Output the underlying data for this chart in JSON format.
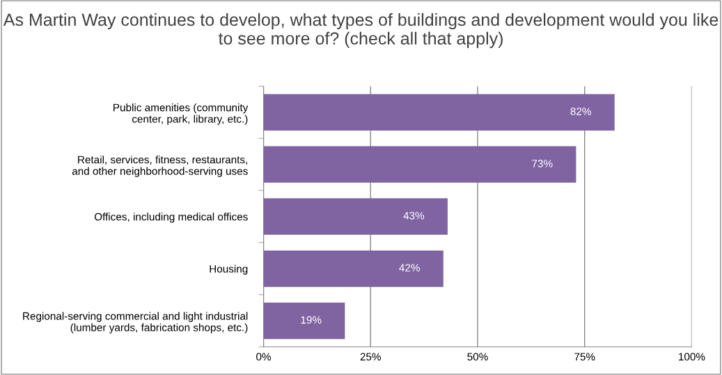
{
  "chart_data": {
    "type": "bar",
    "orientation": "horizontal",
    "title": "As Martin Way continues to develop, what types of buildings and development would you like to see more of? (check all that apply)",
    "categories": [
      "Public amenities (community\ncenter, park, library, etc.)",
      "Retail, services, fitness, restaurants,\nand other neighborhood-serving uses",
      "Offices, including medical offices",
      "Housing",
      "Regional-serving commercial and light industrial\n(lumber yards, fabrication shops, etc.)"
    ],
    "values": [
      82,
      73,
      43,
      42,
      19
    ],
    "value_labels": [
      "82%",
      "73%",
      "43%",
      "42%",
      "19%"
    ],
    "color": "#8064a2",
    "xlim": [
      0,
      100
    ],
    "xticks": [
      {
        "value": 0,
        "label": "0%"
      },
      {
        "value": 25,
        "label": "25%"
      },
      {
        "value": 50,
        "label": "50%"
      },
      {
        "value": 75,
        "label": "75%"
      },
      {
        "value": 100,
        "label": "100%"
      }
    ],
    "grid": "x",
    "legend": false
  }
}
